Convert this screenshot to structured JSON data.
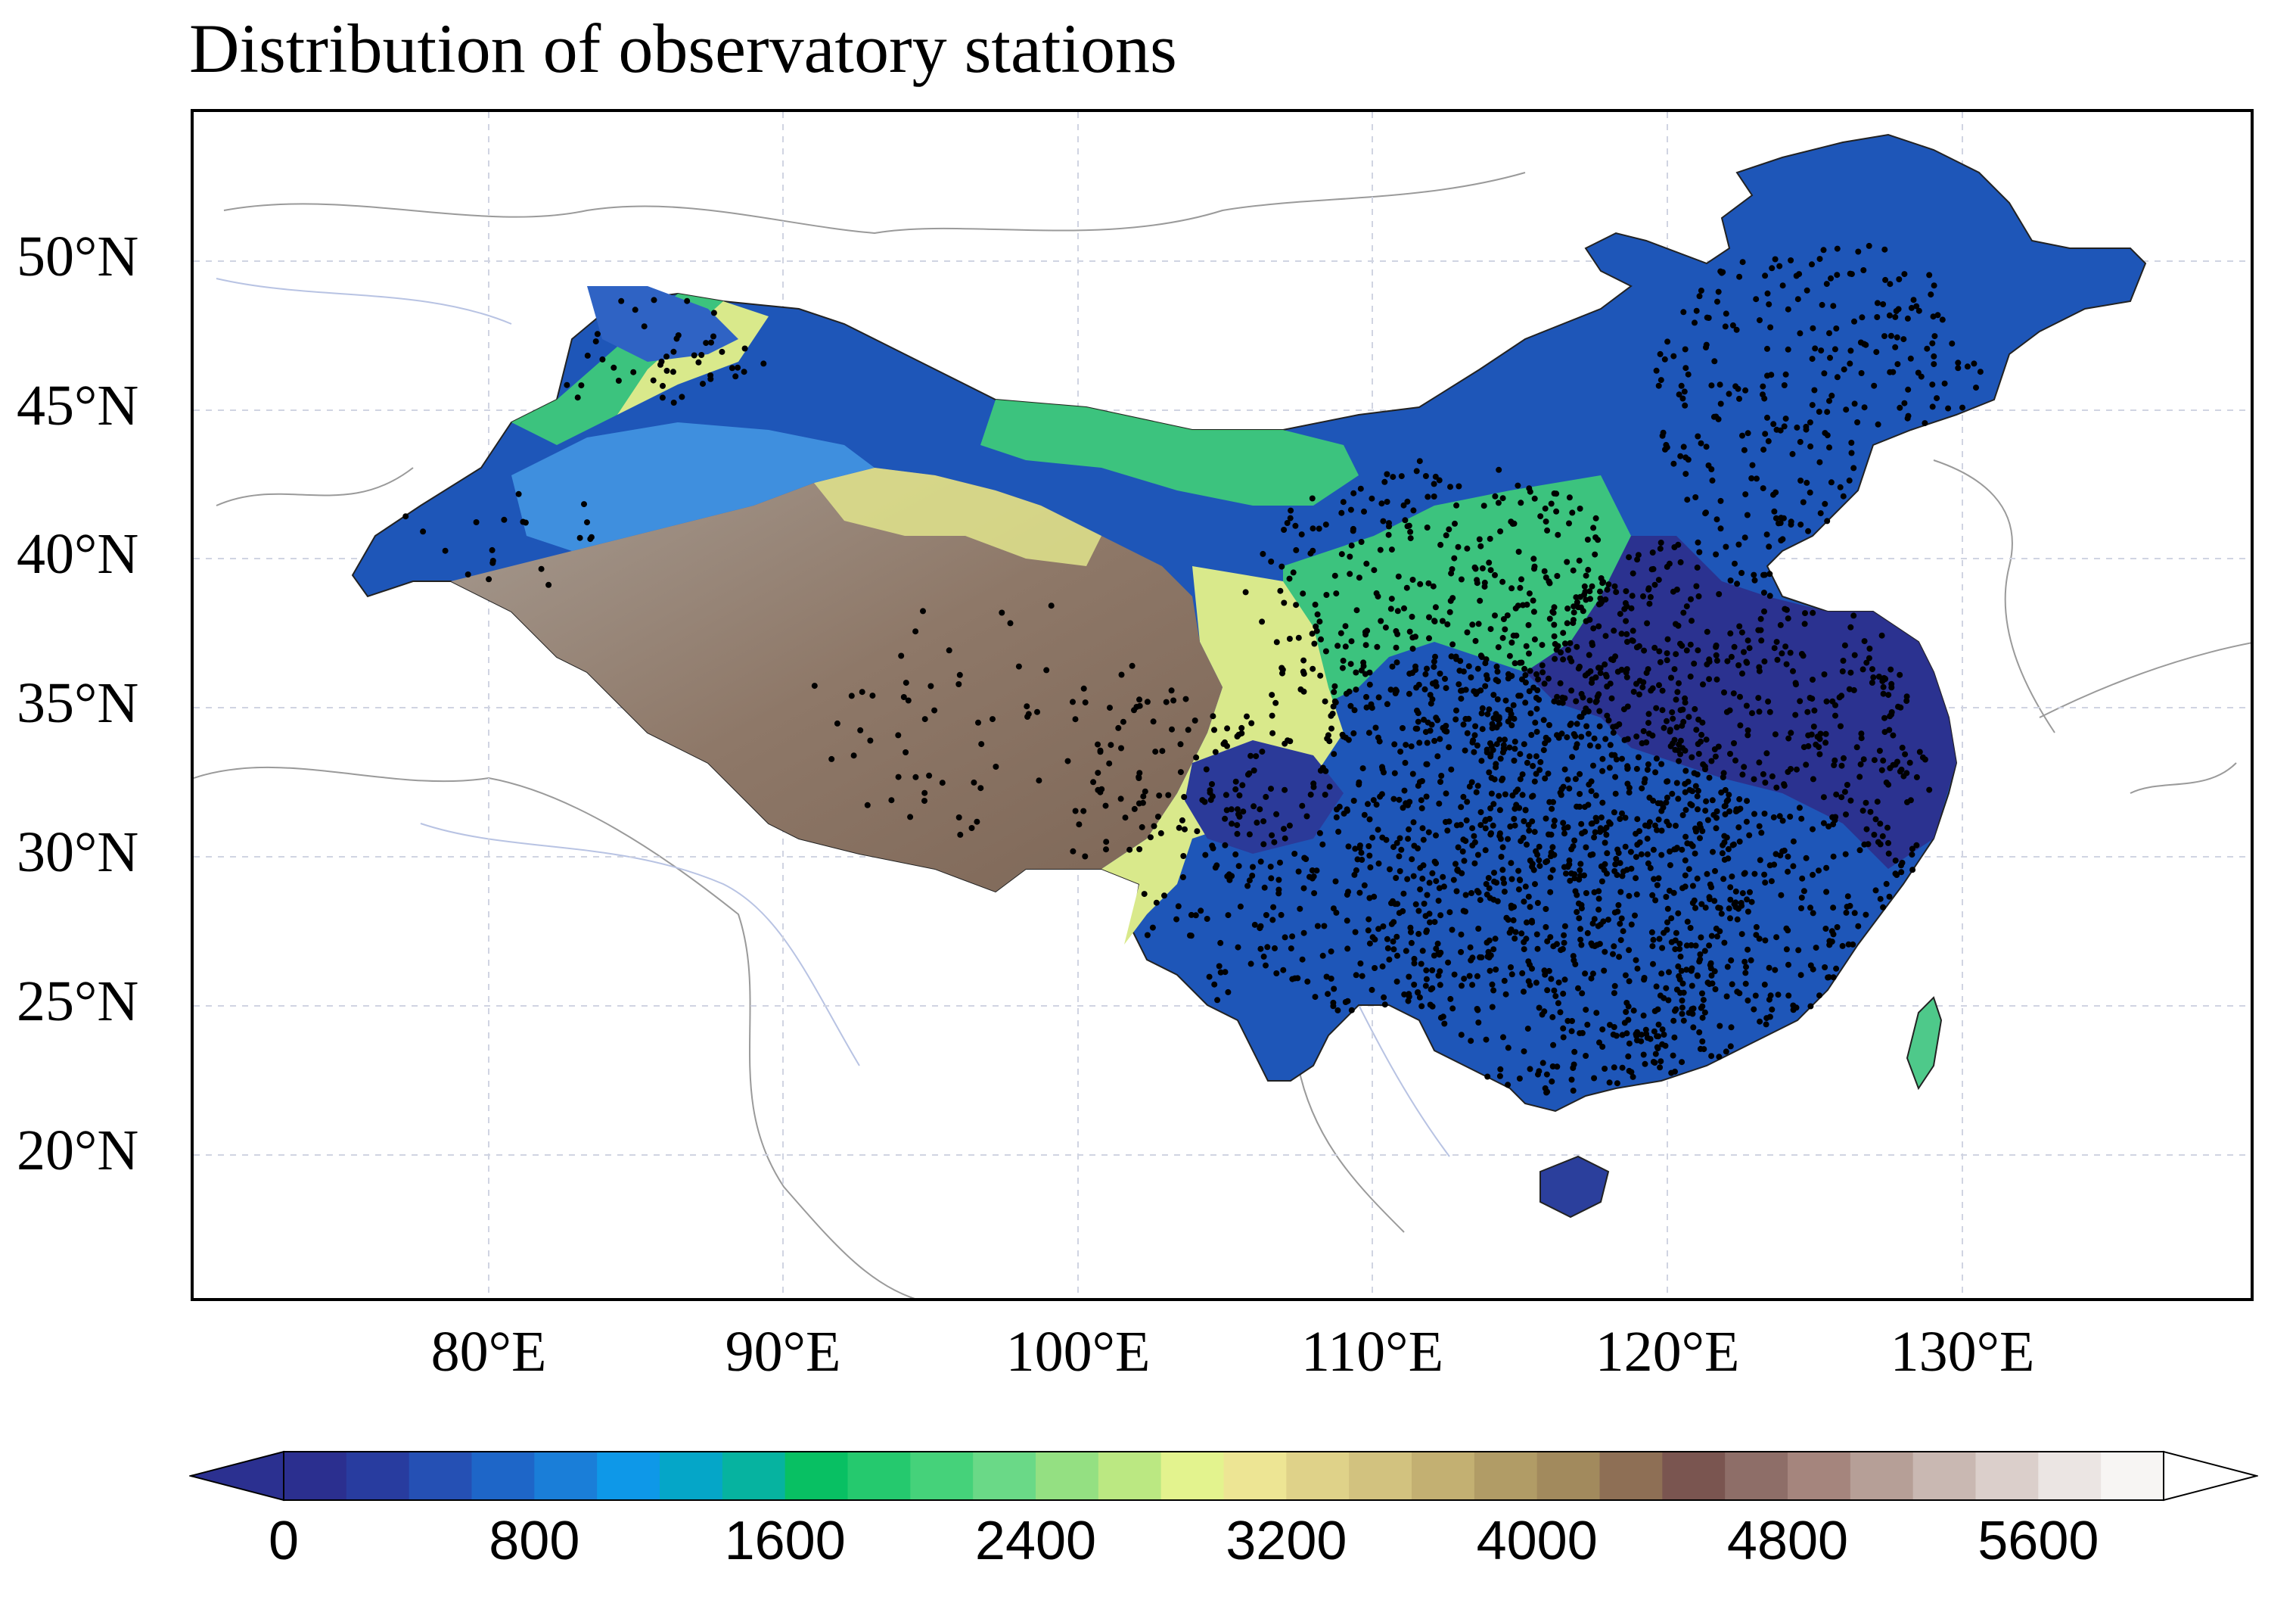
{
  "title": "Distribution of observatory stations",
  "map": {
    "extent": {
      "lon_min": 70,
      "lon_max": 140,
      "lat_min": 15,
      "lat_max": 55
    },
    "lat_ticks": [
      {
        "value": 50,
        "label": "50°N"
      },
      {
        "value": 45,
        "label": "45°N"
      },
      {
        "value": 40,
        "label": "40°N"
      },
      {
        "value": 35,
        "label": "35°N"
      },
      {
        "value": 30,
        "label": "30°N"
      },
      {
        "value": 25,
        "label": "25°N"
      },
      {
        "value": 20,
        "label": "20°N"
      }
    ],
    "lon_ticks": [
      {
        "value": 80,
        "label": "80°E"
      },
      {
        "value": 90,
        "label": "90°E"
      },
      {
        "value": 100,
        "label": "100°E"
      },
      {
        "value": 110,
        "label": "110°E"
      },
      {
        "value": 120,
        "label": "120°E"
      },
      {
        "value": 130,
        "label": "130°E"
      }
    ],
    "layers": [
      "terrain-elevation",
      "country-borders",
      "rivers",
      "observatory-stations"
    ]
  },
  "colorbar": {
    "variable": "elevation",
    "min": 0,
    "max": 6000,
    "step": 200,
    "tick_labels": [
      "0",
      "800",
      "1600",
      "2400",
      "3200",
      "4000",
      "4800",
      "5600"
    ],
    "tick_values": [
      0,
      800,
      1600,
      2400,
      3200,
      4000,
      4800,
      5600
    ],
    "colors": [
      "#2b2f8f",
      "#283c9f",
      "#2550b4",
      "#1e66c8",
      "#1a7ed8",
      "#0e98e8",
      "#05a6c8",
      "#06b3a0",
      "#08c063",
      "#25c96e",
      "#45d27a",
      "#6ad987",
      "#94e082",
      "#bbe882",
      "#e3f38e",
      "#ede594",
      "#dfd289",
      "#d2c27f",
      "#c3b072",
      "#b19c66",
      "#a28a5d",
      "#8e6f55",
      "#7a5550",
      "#8e6e68",
      "#a5857d",
      "#b69f97",
      "#c9b8b2",
      "#dbcfcb",
      "#ebe5e3",
      "#f7f5f3"
    ],
    "under_color": "#2b3090",
    "over_color": "#ffffff"
  }
}
